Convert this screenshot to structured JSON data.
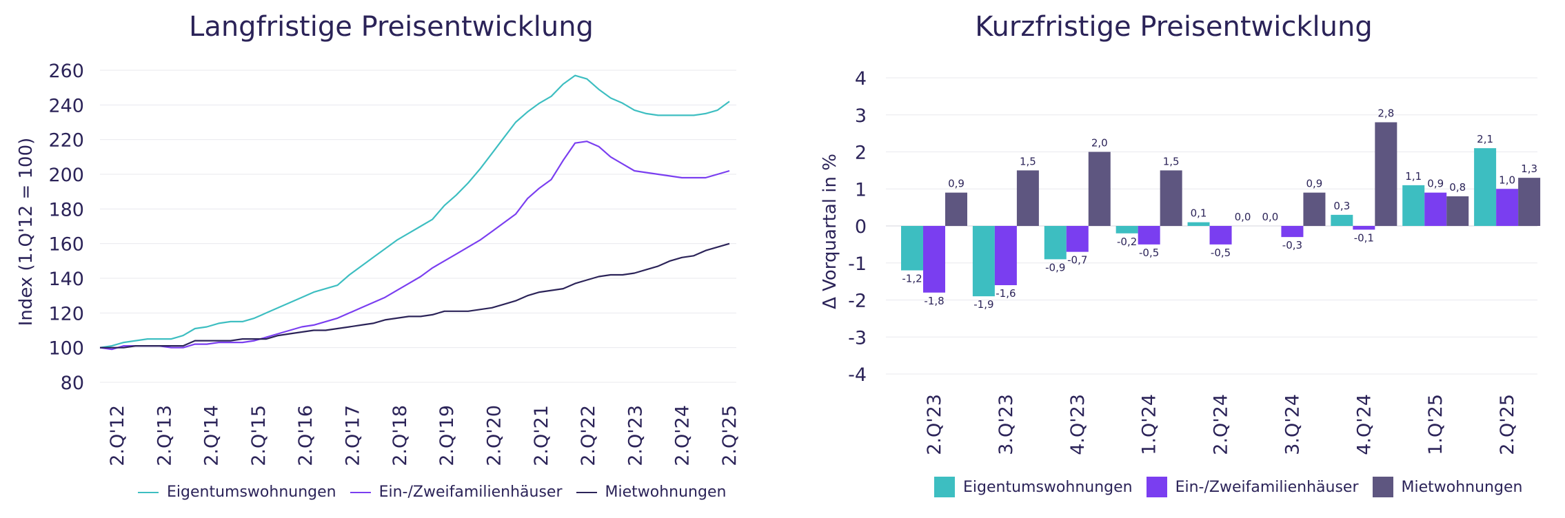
{
  "colors": {
    "eigentum": "#3dbec1",
    "efh": "#7a3ef0",
    "miet": "#2b2358",
    "miet_bar": "#5e5680",
    "grid": "#e8e8ee",
    "text": "#2b2358"
  },
  "left": {
    "title": "Langfristige Preisentwicklung",
    "legend": [
      "Eigentumswohnungen",
      "Ein-/Zweifamilienhäuser",
      "Mietwohnungen"
    ]
  },
  "right": {
    "title": "Kurzfristige Preisentwicklung",
    "legend": [
      "Eigentumswohnungen",
      "Ein-/Zweifamilienhäuser",
      "Mietwohnungen"
    ]
  },
  "chart_data": [
    {
      "type": "line",
      "title": "Langfristige Preisentwicklung",
      "ylabel": "Index (1.Q'12 = 100)",
      "xlabel": "",
      "ylim": [
        80,
        260
      ],
      "yticks": [
        80,
        100,
        120,
        140,
        160,
        180,
        200,
        220,
        240,
        260
      ],
      "grid": true,
      "legend_position": "bottom",
      "x_tick_labels": [
        "2.Q'12",
        "2.Q'13",
        "2.Q'14",
        "2.Q'15",
        "2.Q'16",
        "2.Q'17",
        "2.Q'18",
        "2.Q'19",
        "2.Q'20",
        "2.Q'21",
        "2.Q'22",
        "2.Q'23",
        "2.Q'24",
        "2.Q'25"
      ],
      "series": [
        {
          "name": "Eigentumswohnungen",
          "values": [
            100,
            101,
            103,
            104,
            105,
            105,
            105,
            107,
            111,
            112,
            114,
            115,
            115,
            117,
            120,
            123,
            126,
            129,
            132,
            134,
            136,
            142,
            147,
            152,
            157,
            162,
            166,
            170,
            174,
            182,
            188,
            195,
            203,
            212,
            221,
            230,
            236,
            241,
            245,
            252,
            257,
            255,
            249,
            244,
            241,
            237,
            235,
            234,
            234,
            234,
            234,
            235,
            237,
            242
          ]
        },
        {
          "name": "Ein-/Zweifamilienhäuser",
          "values": [
            100,
            99,
            101,
            101,
            101,
            101,
            100,
            100,
            102,
            102,
            103,
            103,
            103,
            104,
            106,
            108,
            110,
            112,
            113,
            115,
            117,
            120,
            123,
            126,
            129,
            133,
            137,
            141,
            146,
            150,
            154,
            158,
            162,
            167,
            172,
            177,
            186,
            192,
            197,
            208,
            218,
            219,
            216,
            210,
            206,
            202,
            201,
            200,
            199,
            198,
            198,
            198,
            200,
            202
          ]
        },
        {
          "name": "Mietwohnungen",
          "values": [
            100,
            100,
            100,
            101,
            101,
            101,
            101,
            101,
            104,
            104,
            104,
            104,
            105,
            105,
            105,
            107,
            108,
            109,
            110,
            110,
            111,
            112,
            113,
            114,
            116,
            117,
            118,
            118,
            119,
            121,
            121,
            121,
            122,
            123,
            125,
            127,
            130,
            132,
            133,
            134,
            137,
            139,
            141,
            142,
            142,
            143,
            145,
            147,
            150,
            152,
            153,
            156,
            158,
            160
          ]
        }
      ]
    },
    {
      "type": "bar",
      "title": "Kurzfristige Preisentwicklung",
      "ylabel": "Δ Vorquartal in %",
      "xlabel": "",
      "ylim": [
        -4,
        4
      ],
      "yticks": [
        -4,
        -3,
        -2,
        -1,
        0,
        1,
        2,
        3,
        4
      ],
      "grid": true,
      "legend_position": "bottom",
      "categories": [
        "2.Q'23",
        "3.Q'23",
        "4.Q'23",
        "1.Q'24",
        "2.Q'24",
        "3.Q'24",
        "4.Q'24",
        "1.Q'25",
        "2.Q'25"
      ],
      "series": [
        {
          "name": "Eigentumswohnungen",
          "values": [
            -1.2,
            -1.9,
            -0.9,
            -0.2,
            0.1,
            0.0,
            0.3,
            1.1,
            2.1
          ]
        },
        {
          "name": "Ein-/Zweifamilienhäuser",
          "values": [
            -1.8,
            -1.6,
            -0.7,
            -0.5,
            -0.5,
            -0.3,
            -0.1,
            0.9,
            1.0
          ]
        },
        {
          "name": "Mietwohnungen",
          "values": [
            0.9,
            1.5,
            2.0,
            1.5,
            0.0,
            0.9,
            2.8,
            0.8,
            1.3
          ]
        }
      ],
      "data_labels": [
        [
          "-1,2",
          "-1,9",
          "-0,9",
          "-0,2",
          "0,1",
          "0,0",
          "0,3",
          "1,1",
          "2,1"
        ],
        [
          "-1,8",
          "-1,6",
          "-0,7",
          "-0,5",
          "-0,5",
          "-0,3",
          "-0,1",
          "0,9",
          "1,0"
        ],
        [
          "0,9",
          "1,5",
          "2,0",
          "1,5",
          "0,0",
          "0,9",
          "2,8",
          "0,8",
          "1,3"
        ]
      ]
    }
  ]
}
